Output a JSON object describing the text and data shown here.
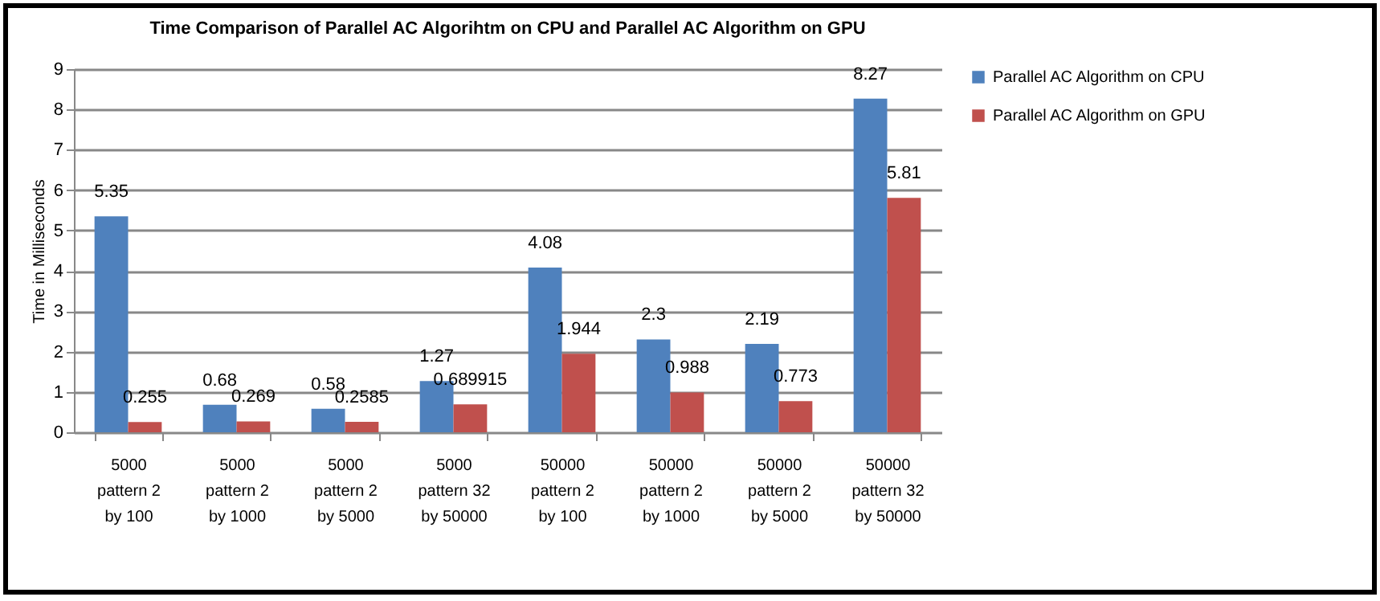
{
  "chart_data": {
    "type": "bar",
    "title": "Time Comparison of Parallel AC Algorihtm on CPU and Parallel AC Algorithm on GPU",
    "ylabel": "Time in Milliseconds",
    "categories": [
      "5000 pattern 2 by 100",
      "5000 pattern 2 by 1000",
      "5000 pattern 2 by 5000",
      "5000 pattern 32 by 50000",
      "50000 pattern 2 by 100",
      "50000 pattern 2 by 1000",
      "50000 pattern 2 by 5000",
      "50000 pattern 32 by 50000"
    ],
    "series": [
      {
        "name": "Parallel AC Algorithm on CPU",
        "color": "#4f81bd",
        "values": [
          5.35,
          0.68,
          0.58,
          1.27,
          4.08,
          2.3,
          2.19,
          8.27
        ]
      },
      {
        "name": "Parallel AC Algorithm on GPU",
        "color": "#c0504d",
        "values": [
          0.255,
          0.269,
          0.2585,
          0.689915,
          1.944,
          0.988,
          0.773,
          5.81
        ]
      }
    ],
    "ylim": [
      0,
      9
    ],
    "yticks": [
      0,
      1,
      2,
      3,
      4,
      5,
      6,
      7,
      8,
      9
    ],
    "grid": "y",
    "legend": "right",
    "data_labels": true
  }
}
